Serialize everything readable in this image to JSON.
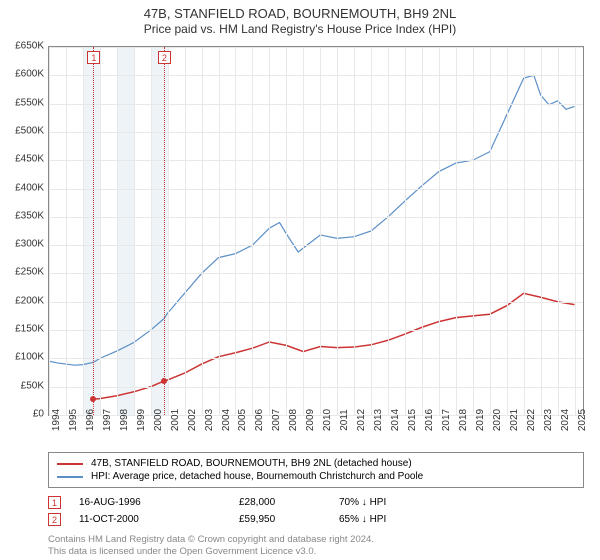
{
  "title": "47B, STANFIELD ROAD, BOURNEMOUTH, BH9 2NL",
  "subtitle": "Price paid vs. HM Land Registry's House Price Index (HPI)",
  "chart": {
    "type": "line",
    "xlim": [
      1994,
      2025.5
    ],
    "ylim": [
      0,
      650000
    ],
    "ytick_step": 50000,
    "yticks": [
      0,
      50000,
      100000,
      150000,
      200000,
      250000,
      300000,
      350000,
      400000,
      450000,
      500000,
      550000,
      600000,
      650000
    ],
    "ytick_labels": [
      "£0",
      "£50K",
      "£100K",
      "£150K",
      "£200K",
      "£250K",
      "£300K",
      "£350K",
      "£400K",
      "£450K",
      "£500K",
      "£550K",
      "£600K",
      "£650K"
    ],
    "xticks": [
      1994,
      1995,
      1996,
      1997,
      1998,
      1999,
      2000,
      2001,
      2002,
      2003,
      2004,
      2005,
      2006,
      2007,
      2008,
      2009,
      2010,
      2011,
      2012,
      2013,
      2014,
      2015,
      2016,
      2017,
      2018,
      2019,
      2020,
      2021,
      2022,
      2023,
      2024,
      2025
    ],
    "shaded_bands": [
      [
        1996,
        1997
      ],
      [
        1998,
        1999
      ],
      [
        2000,
        2001
      ]
    ],
    "grid_color": "#e8e8e8",
    "background_color": "#ffffff",
    "series": [
      {
        "name": "47B, STANFIELD ROAD, BOURNEMOUTH, BH9 2NL (detached house)",
        "color": "#cc3333",
        "line_width": 1.5,
        "points": [
          [
            1996.62,
            28000
          ],
          [
            1997,
            29000
          ],
          [
            1998,
            34000
          ],
          [
            1999,
            41000
          ],
          [
            2000,
            50000
          ],
          [
            2000.78,
            59950
          ],
          [
            2001,
            62000
          ],
          [
            2002,
            74000
          ],
          [
            2003,
            90000
          ],
          [
            2004,
            103000
          ],
          [
            2005,
            110000
          ],
          [
            2006,
            118000
          ],
          [
            2007,
            129000
          ],
          [
            2008,
            123000
          ],
          [
            2009,
            112000
          ],
          [
            2010,
            121000
          ],
          [
            2011,
            119000
          ],
          [
            2012,
            120000
          ],
          [
            2013,
            124000
          ],
          [
            2014,
            132000
          ],
          [
            2015,
            143000
          ],
          [
            2016,
            155000
          ],
          [
            2017,
            165000
          ],
          [
            2018,
            172000
          ],
          [
            2019,
            175000
          ],
          [
            2020,
            178000
          ],
          [
            2021,
            193000
          ],
          [
            2022,
            215000
          ],
          [
            2023,
            208000
          ],
          [
            2024,
            200000
          ],
          [
            2025,
            195000
          ]
        ]
      },
      {
        "name": "HPI: Average price, detached house, Bournemouth Christchurch and Poole",
        "color": "#5b8fc7",
        "line_width": 1.2,
        "points": [
          [
            1994,
            95000
          ],
          [
            1994.5,
            92000
          ],
          [
            1995,
            90000
          ],
          [
            1995.5,
            88000
          ],
          [
            1996,
            89000
          ],
          [
            1996.62,
            93000
          ],
          [
            1997,
            100000
          ],
          [
            1998,
            113000
          ],
          [
            1999,
            128000
          ],
          [
            2000,
            150000
          ],
          [
            2000.78,
            170000
          ],
          [
            2001,
            180000
          ],
          [
            2002,
            215000
          ],
          [
            2003,
            250000
          ],
          [
            2004,
            278000
          ],
          [
            2005,
            285000
          ],
          [
            2006,
            300000
          ],
          [
            2007,
            330000
          ],
          [
            2007.6,
            340000
          ],
          [
            2008,
            320000
          ],
          [
            2008.7,
            288000
          ],
          [
            2009,
            295000
          ],
          [
            2010,
            318000
          ],
          [
            2011,
            312000
          ],
          [
            2012,
            315000
          ],
          [
            2013,
            325000
          ],
          [
            2014,
            350000
          ],
          [
            2015,
            378000
          ],
          [
            2016,
            405000
          ],
          [
            2017,
            430000
          ],
          [
            2018,
            445000
          ],
          [
            2019,
            450000
          ],
          [
            2020,
            465000
          ],
          [
            2021,
            530000
          ],
          [
            2022,
            595000
          ],
          [
            2022.6,
            600000
          ],
          [
            2023,
            565000
          ],
          [
            2023.5,
            548000
          ],
          [
            2024,
            555000
          ],
          [
            2024.5,
            540000
          ],
          [
            2025,
            545000
          ]
        ]
      }
    ],
    "events": [
      {
        "n": "1",
        "x": 1996.62,
        "date": "16-AUG-1996",
        "price": "£28,000",
        "rel": "70% ↓ HPI",
        "dot_y": 28000
      },
      {
        "n": "2",
        "x": 2000.78,
        "date": "11-OCT-2000",
        "price": "£59,950",
        "rel": "65% ↓ HPI",
        "dot_y": 59950
      }
    ]
  },
  "legend": {
    "rows": [
      {
        "color": "#cc3333",
        "label": "47B, STANFIELD ROAD, BOURNEMOUTH, BH9 2NL (detached house)"
      },
      {
        "color": "#5b8fc7",
        "label": "HPI: Average price, detached house, Bournemouth Christchurch and Poole"
      }
    ]
  },
  "footnote_line1": "Contains HM Land Registry data © Crown copyright and database right 2024.",
  "footnote_line2": "This data is licensed under the Open Government Licence v3.0."
}
